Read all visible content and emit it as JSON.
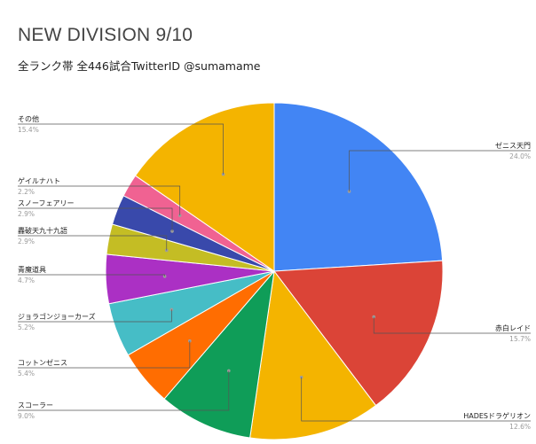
{
  "chart_data": {
    "type": "pie",
    "title": "NEW DIVISION 9/10",
    "subtitle": "全ランク帯 全446試合TwitterID @sumamame",
    "slices": [
      {
        "name": "ゼニス天門",
        "value": 24.0,
        "label": "24.0%",
        "color": "#4285f4"
      },
      {
        "name": "赤白レイド",
        "value": 15.7,
        "label": "15.7%",
        "color": "#db4437"
      },
      {
        "name": "HADESドラゲリオン",
        "value": 12.6,
        "label": "12.6%",
        "color": "#f4b400"
      },
      {
        "name": "スコーラー",
        "value": 9.0,
        "label": "9.0%",
        "color": "#0f9d58"
      },
      {
        "name": "コットンゼニス",
        "value": 5.4,
        "label": "5.4%",
        "color": "#ff6d01"
      },
      {
        "name": "ジョラゴンジョーカーズ",
        "value": 5.2,
        "label": "5.2%",
        "color": "#46bdc6"
      },
      {
        "name": "青魔道具",
        "value": 4.7,
        "label": "4.7%",
        "color": "#ab30c4"
      },
      {
        "name": "轟破天九十九語",
        "value": 2.9,
        "label": "2.9%",
        "color": "#c4bd24"
      },
      {
        "name": "スノーフェアリー",
        "value": 2.9,
        "label": "2.9%",
        "color": "#3949ab"
      },
      {
        "name": "ゲイルナハト",
        "value": 2.2,
        "label": "2.2%",
        "color": "#f06292"
      },
      {
        "name": "その他",
        "value": 15.4,
        "label": "15.4%",
        "color": "#f4b400"
      }
    ]
  }
}
